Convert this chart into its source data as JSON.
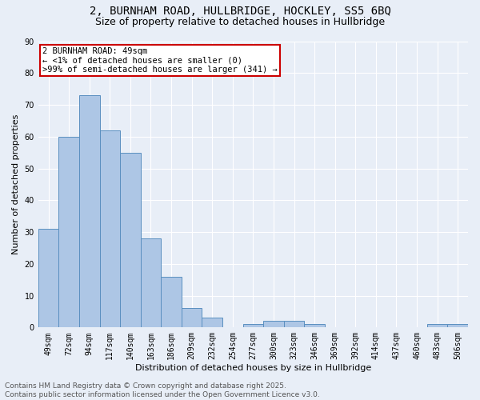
{
  "title_line1": "2, BURNHAM ROAD, HULLBRIDGE, HOCKLEY, SS5 6BQ",
  "title_line2": "Size of property relative to detached houses in Hullbridge",
  "xlabel": "Distribution of detached houses by size in Hullbridge",
  "ylabel": "Number of detached properties",
  "categories": [
    "49sqm",
    "72sqm",
    "94sqm",
    "117sqm",
    "140sqm",
    "163sqm",
    "186sqm",
    "209sqm",
    "232sqm",
    "254sqm",
    "277sqm",
    "300sqm",
    "323sqm",
    "346sqm",
    "369sqm",
    "392sqm",
    "414sqm",
    "437sqm",
    "460sqm",
    "483sqm",
    "506sqm"
  ],
  "values": [
    31,
    60,
    73,
    62,
    55,
    28,
    16,
    6,
    3,
    0,
    1,
    2,
    2,
    1,
    0,
    0,
    0,
    0,
    0,
    1,
    1
  ],
  "bar_color": "#adc6e5",
  "bar_edge_color": "#5a8fc0",
  "background_color": "#e8eef7",
  "annotation_line1": "2 BURNHAM ROAD: 49sqm",
  "annotation_line2": "← <1% of detached houses are smaller (0)",
  "annotation_line3": ">99% of semi-detached houses are larger (341) →",
  "annotation_box_color": "#ffffff",
  "annotation_border_color": "#cc0000",
  "ylim": [
    0,
    90
  ],
  "yticks": [
    0,
    10,
    20,
    30,
    40,
    50,
    60,
    70,
    80,
    90
  ],
  "footer_line1": "Contains HM Land Registry data © Crown copyright and database right 2025.",
  "footer_line2": "Contains public sector information licensed under the Open Government Licence v3.0.",
  "grid_color": "#ffffff",
  "title_fontsize": 10,
  "subtitle_fontsize": 9,
  "axis_label_fontsize": 8,
  "tick_fontsize": 7,
  "annotation_fontsize": 7.5,
  "footer_fontsize": 6.5
}
